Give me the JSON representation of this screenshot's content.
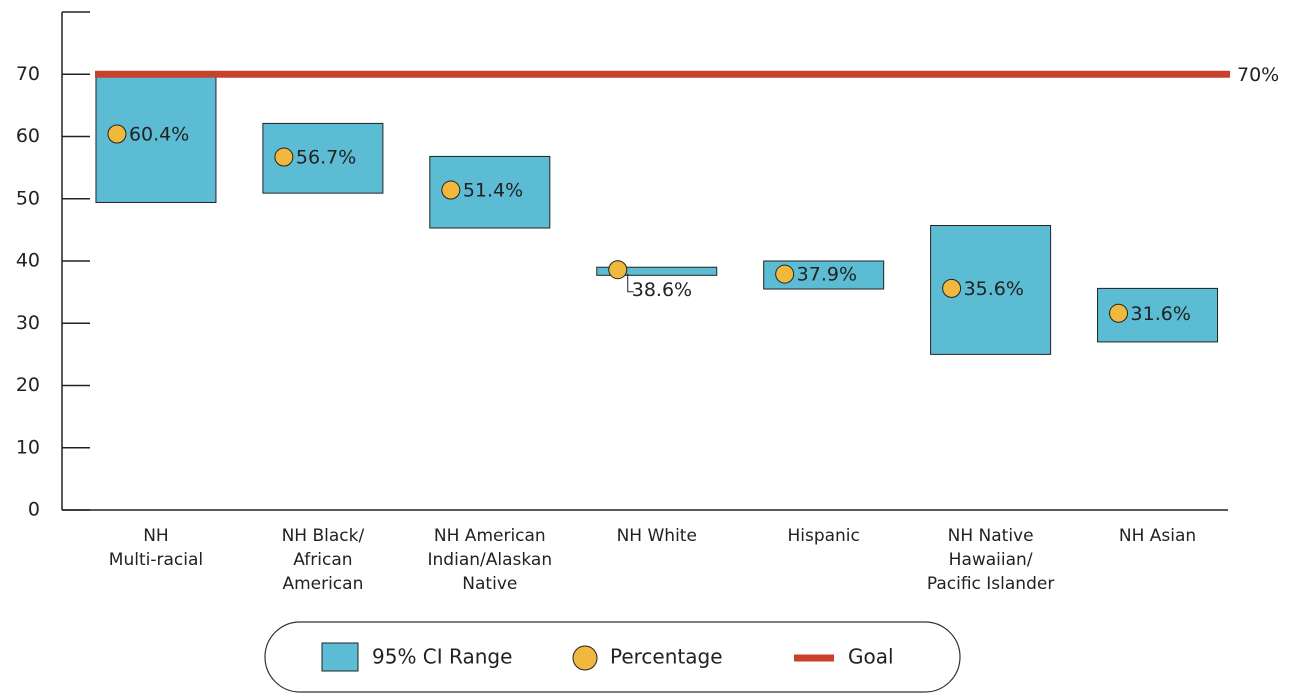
{
  "chart_data": {
    "type": "range",
    "categories": [
      "NH\nMulti-racial",
      "NH Black/\nAfrican\nAmerican",
      "NH American\nIndian/Alaskan\nNative",
      "NH White",
      "Hispanic",
      "NH Native\nHawaiian/\nPacific Islander",
      "NH Asian"
    ],
    "series": [
      {
        "name": "95% CI Range",
        "color": "#5bbcd4",
        "low": [
          49.4,
          50.9,
          45.3,
          37.7,
          35.5,
          25.0,
          27.0
        ],
        "high": [
          70.0,
          62.1,
          56.8,
          39.0,
          40.0,
          45.7,
          35.6
        ]
      },
      {
        "name": "Percentage",
        "color": "#f0b83c",
        "values": [
          60.4,
          56.7,
          51.4,
          38.6,
          37.9,
          35.6,
          31.6
        ],
        "value_labels": [
          "60.4%",
          "56.7%",
          "51.4%",
          "38.6%",
          "37.9%",
          "35.6%",
          "31.6%"
        ]
      }
    ],
    "goal": {
      "name": "Goal",
      "value": 70,
      "label": "70%",
      "color": "#c8412b"
    },
    "ylim": [
      0,
      80
    ],
    "yticks": [
      0,
      10,
      20,
      30,
      40,
      50,
      60,
      70
    ]
  }
}
